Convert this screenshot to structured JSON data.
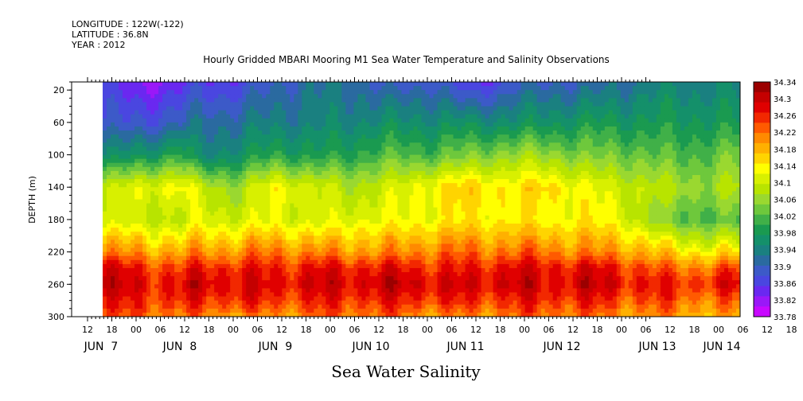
{
  "header": {
    "longitude": "LONGITUDE : 122W(-122)",
    "latitude": "LATITUDE : 36.8N",
    "year": "YEAR : 2012"
  },
  "chart_data": {
    "type": "heatmap",
    "title": "Hourly Gridded MBARI Mooring M1 Sea Water Temperature and Salinity Observations",
    "subtitle": "Sea Water Salinity",
    "ylabel": "DEPTH (m)",
    "xlabel": "",
    "y_axis": {
      "reversed": true,
      "ylim": [
        10,
        300
      ],
      "ticks": [
        20,
        60,
        100,
        140,
        180,
        220,
        260,
        300
      ]
    },
    "x_axis": {
      "hour_ticks": [
        "12",
        "18",
        "00",
        "06",
        "12",
        "18",
        "00",
        "06",
        "12",
        "18",
        "00",
        "06",
        "12",
        "18",
        "00",
        "06",
        "12",
        "18",
        "00",
        "06",
        "12",
        "18",
        "00",
        "06",
        "12",
        "18",
        "00",
        "06",
        "12",
        "18",
        "00",
        "06"
      ],
      "date_labels": [
        "JUN  7",
        "JUN  8",
        "JUN  9",
        "JUN 10",
        "JUN 11",
        "JUN 12",
        "JUN 13",
        "JUN 14"
      ],
      "data_start_hour_label": "18",
      "hours_per_major_tick": 6
    },
    "depth_levels": [
      10,
      60,
      100,
      140,
      180,
      220,
      240,
      260,
      280,
      300
    ],
    "profiles": [
      {
        "x": 0,
        "values": [
          33.86,
          33.88,
          33.95,
          34.08,
          34.1,
          34.2,
          34.28,
          34.3,
          34.26,
          34.22
        ]
      },
      {
        "x": 12,
        "values": [
          33.82,
          33.88,
          33.97,
          34.12,
          34.1,
          34.2,
          34.26,
          34.28,
          34.26,
          34.24
        ]
      },
      {
        "x": 24,
        "values": [
          33.84,
          33.9,
          34.0,
          34.13,
          34.08,
          34.18,
          34.24,
          34.27,
          34.25,
          34.2
        ]
      },
      {
        "x": 30,
        "values": [
          33.86,
          33.92,
          33.95,
          34.1,
          34.12,
          34.2,
          34.27,
          34.3,
          34.26,
          34.22
        ]
      },
      {
        "x": 42,
        "values": [
          33.86,
          33.92,
          33.96,
          34.06,
          34.1,
          34.2,
          34.26,
          34.28,
          34.26,
          34.2
        ]
      },
      {
        "x": 54,
        "values": [
          33.9,
          33.94,
          34.0,
          34.14,
          34.12,
          34.22,
          34.26,
          34.28,
          34.25,
          34.2
        ]
      },
      {
        "x": 66,
        "values": [
          33.92,
          33.94,
          33.98,
          34.1,
          34.1,
          34.2,
          34.27,
          34.29,
          34.26,
          34.22
        ]
      },
      {
        "x": 78,
        "values": [
          33.92,
          33.95,
          34.0,
          34.08,
          34.12,
          34.2,
          34.27,
          34.29,
          34.26,
          34.22
        ]
      },
      {
        "x": 90,
        "values": [
          33.88,
          33.96,
          34.02,
          34.1,
          34.12,
          34.2,
          34.27,
          34.3,
          34.26,
          34.22
        ]
      },
      {
        "x": 102,
        "values": [
          33.9,
          33.96,
          34.02,
          34.14,
          34.13,
          34.22,
          34.26,
          34.29,
          34.26,
          34.2
        ]
      },
      {
        "x": 114,
        "values": [
          33.84,
          33.96,
          34.04,
          34.16,
          34.14,
          34.22,
          34.26,
          34.28,
          34.25,
          34.2
        ]
      },
      {
        "x": 126,
        "values": [
          33.88,
          33.96,
          34.06,
          34.14,
          34.14,
          34.22,
          34.28,
          34.3,
          34.26,
          34.22
        ]
      },
      {
        "x": 138,
        "values": [
          33.9,
          33.97,
          34.06,
          34.16,
          34.13,
          34.22,
          34.27,
          34.28,
          34.26,
          34.22
        ]
      },
      {
        "x": 150,
        "values": [
          33.9,
          33.98,
          34.04,
          34.12,
          34.14,
          34.2,
          34.28,
          34.3,
          34.26,
          34.22
        ]
      },
      {
        "x": 162,
        "values": [
          33.92,
          33.98,
          34.04,
          34.1,
          34.12,
          34.2,
          34.26,
          34.28,
          34.24,
          34.2
        ]
      },
      {
        "x": 174,
        "values": [
          33.94,
          33.98,
          34.02,
          34.08,
          34.04,
          34.16,
          34.22,
          34.26,
          34.24,
          34.2
        ]
      },
      {
        "x": 186,
        "values": [
          33.94,
          33.98,
          34.02,
          34.06,
          34.02,
          34.14,
          34.22,
          34.26,
          34.22,
          34.18
        ]
      },
      {
        "x": 198,
        "values": [
          33.94,
          33.98,
          34.04,
          34.08,
          34.02,
          34.14,
          34.24,
          34.28,
          34.22,
          34.18
        ]
      }
    ],
    "colorbar": {
      "min": 33.78,
      "max": 34.34,
      "labels": [
        "34.34",
        "34.3",
        "34.26",
        "34.22",
        "34.18",
        "34.14",
        "34.1",
        "34.06",
        "34.02",
        "33.98",
        "33.94",
        "33.9",
        "33.86",
        "33.82",
        "33.78"
      ],
      "colors": [
        "#9b0000",
        "#c40000",
        "#e00000",
        "#f22800",
        "#ff5a00",
        "#ff8a00",
        "#ffb000",
        "#ffd400",
        "#ffff00",
        "#d8f000",
        "#b8e400",
        "#9ad830",
        "#6ec83c",
        "#40b048",
        "#1a9a50",
        "#14906a",
        "#1a8080",
        "#2a6aa0",
        "#3c5ac8",
        "#4a46e0",
        "#6a28f0",
        "#9a18f8",
        "#c808ff"
      ]
    }
  }
}
